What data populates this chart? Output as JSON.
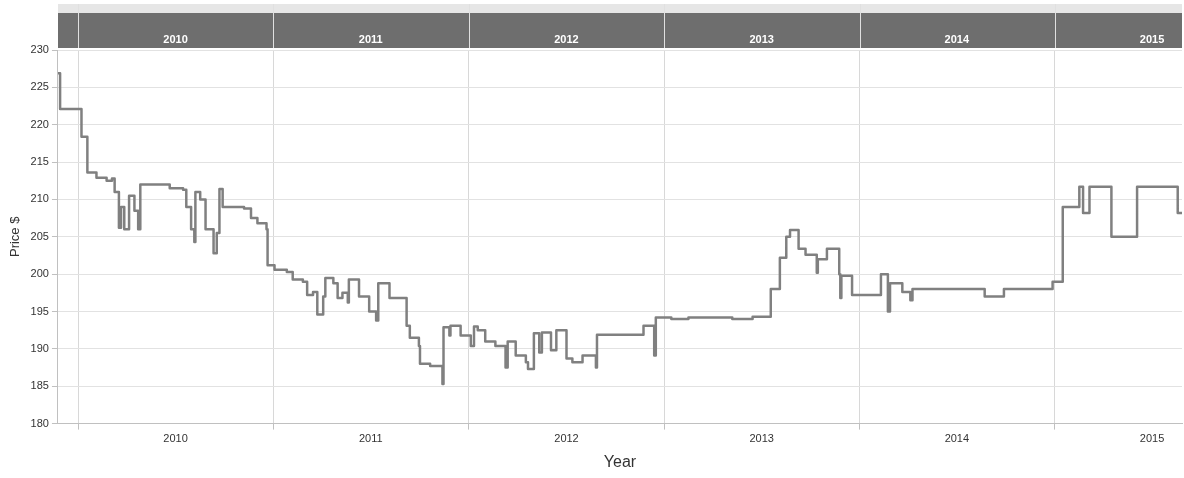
{
  "chart_data": {
    "type": "step",
    "xlabel": "Year",
    "ylabel": "Price $",
    "x": [
      "2009-11-24",
      "2009-11-28",
      "2010-01-07",
      "2010-01-18",
      "2010-02-04",
      "2010-02-23",
      "2010-03-05",
      "2010-03-10",
      "2010-03-18",
      "2010-03-22",
      "2010-03-28",
      "2010-04-06",
      "2010-04-16",
      "2010-04-23",
      "2010-04-27",
      "2010-06-21",
      "2010-07-16",
      "2010-07-22",
      "2010-07-31",
      "2010-08-06",
      "2010-08-08",
      "2010-08-17",
      "2010-08-27",
      "2010-09-11",
      "2010-09-17",
      "2010-09-22",
      "2010-09-28",
      "2010-11-07",
      "2010-11-20",
      "2010-12-02",
      "2010-12-19",
      "2010-12-21",
      "2011-01-03",
      "2011-01-26",
      "2011-02-06",
      "2011-02-25",
      "2011-03-05",
      "2011-03-16",
      "2011-03-24",
      "2011-04-04",
      "2011-04-08",
      "2011-04-23",
      "2011-05-01",
      "2011-05-10",
      "2011-05-20",
      "2011-05-22",
      "2011-06-10",
      "2011-06-29",
      "2011-07-12",
      "2011-07-16",
      "2011-08-06",
      "2011-09-07",
      "2011-09-13",
      "2011-09-30",
      "2011-10-02",
      "2011-10-21",
      "2011-11-13",
      "2011-11-15",
      "2011-11-26",
      "2011-11-28",
      "2011-12-17",
      "2012-01-05",
      "2012-01-11",
      "2012-01-18",
      "2012-02-01",
      "2012-02-20",
      "2012-03-10",
      "2012-03-14",
      "2012-03-29",
      "2012-04-17",
      "2012-04-21",
      "2012-05-02",
      "2012-05-12",
      "2012-05-17",
      "2012-06-03",
      "2012-06-13",
      "2012-07-02",
      "2012-07-13",
      "2012-08-01",
      "2012-08-26",
      "2012-08-28",
      "2012-11-23",
      "2012-12-13",
      "2012-12-16",
      "2013-01-14",
      "2013-02-15",
      "2013-05-08",
      "2013-06-15",
      "2013-07-19",
      "2013-08-05",
      "2013-08-17",
      "2013-08-24",
      "2013-09-09",
      "2013-09-22",
      "2013-10-13",
      "2013-10-15",
      "2013-11-01",
      "2013-11-24",
      "2013-11-26",
      "2013-11-28",
      "2013-12-18",
      "2014-02-10",
      "2014-02-23",
      "2014-02-27",
      "2014-03-22",
      "2014-04-06",
      "2014-04-10",
      "2014-08-23",
      "2014-09-28",
      "2014-12-28",
      "2015-01-16",
      "2015-02-16",
      "2015-02-23",
      "2015-03-07",
      "2015-04-17",
      "2015-06-04",
      "2015-08-19",
      "2015-08-27"
    ],
    "series": [
      {
        "color": "#808080",
        "values": [
          226.9,
          222.1,
          218.4,
          213.6,
          212.9,
          212.5,
          212.8,
          211,
          206.2,
          209,
          206,
          210.5,
          208.5,
          206,
          212,
          211.5,
          211.3,
          209,
          206,
          204.3,
          211,
          210,
          206,
          202.8,
          205.5,
          211.4,
          209,
          208.8,
          207.5,
          206.8,
          206,
          201.2,
          200.6,
          200.3,
          199.3,
          199,
          197.2,
          197.6,
          194.6,
          197,
          199.5,
          198.8,
          196.8,
          197.5,
          196.2,
          199.3,
          197,
          195,
          193.8,
          198.8,
          196.8,
          193.1,
          191.5,
          190.4,
          188,
          187.7,
          185.3,
          192.9,
          191.8,
          193.1,
          191.8,
          190.4,
          193,
          192.5,
          191,
          190.4,
          187.5,
          191,
          189.1,
          188.2,
          187.3,
          192.1,
          189.5,
          192.2,
          189.8,
          192.5,
          188.7,
          188.2,
          189.1,
          187.5,
          191.9,
          193.1,
          189.1,
          194.2,
          194,
          194.2,
          194,
          194.3,
          198,
          202.2,
          205,
          205.9,
          203.4,
          202.6,
          200.2,
          202,
          203.4,
          200,
          196.8,
          199.8,
          197.2,
          200,
          195,
          198.8,
          197.6,
          196.5,
          198,
          197,
          198,
          199,
          209,
          211.7,
          208.2,
          211.7,
          205,
          211.7,
          208.2,
          208.2
        ]
      }
    ],
    "xlim": [
      "2009-11-24",
      "2015-08-27"
    ],
    "xticks": [
      {
        "value": "2010-01-01",
        "label": null
      },
      {
        "value": "2010-07-02",
        "label": "2010"
      },
      {
        "value": "2011-01-01",
        "label": null
      },
      {
        "value": "2011-07-02",
        "label": "2011"
      },
      {
        "value": "2012-01-01",
        "label": null
      },
      {
        "value": "2012-07-02",
        "label": "2012"
      },
      {
        "value": "2013-01-01",
        "label": null
      },
      {
        "value": "2013-07-02",
        "label": "2013"
      },
      {
        "value": "2014-01-01",
        "label": null
      },
      {
        "value": "2014-07-02",
        "label": "2014"
      },
      {
        "value": "2015-01-01",
        "label": null
      },
      {
        "value": "2015-07-02",
        "label": "2015"
      }
    ],
    "ylim": [
      180,
      230
    ],
    "yticks": [
      180,
      185,
      190,
      195,
      200,
      205,
      210,
      215,
      220,
      225,
      230
    ],
    "grid": true,
    "legend": false,
    "marker": "none",
    "line_style": "solid"
  }
}
